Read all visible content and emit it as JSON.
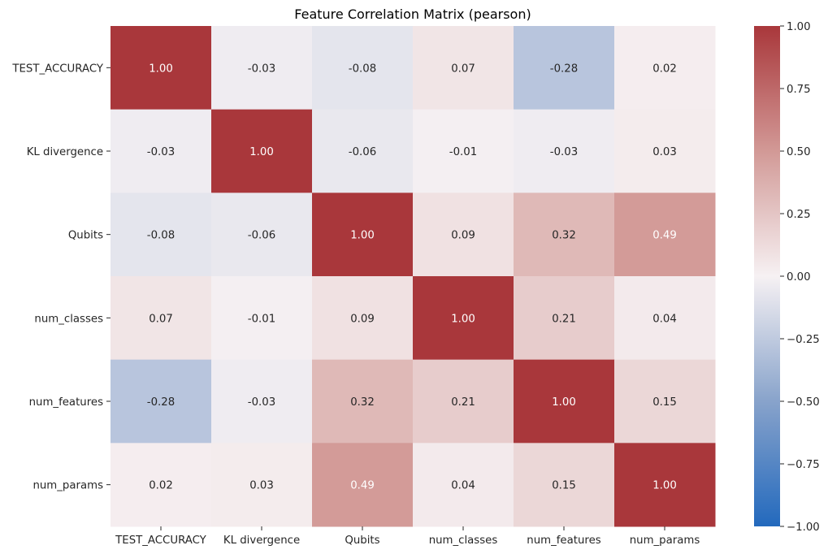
{
  "chart_data": {
    "type": "heatmap",
    "title": "Feature Correlation Matrix (pearson)",
    "x_labels": [
      "TEST_ACCURACY",
      "KL divergence",
      "Qubits",
      "num_classes",
      "num_features",
      "num_params"
    ],
    "y_labels": [
      "TEST_ACCURACY",
      "KL divergence",
      "Qubits",
      "num_classes",
      "num_features",
      "num_params"
    ],
    "values": [
      [
        1.0,
        -0.03,
        -0.08,
        0.07,
        -0.28,
        0.02
      ],
      [
        -0.03,
        1.0,
        -0.06,
        -0.01,
        -0.03,
        0.03
      ],
      [
        -0.08,
        -0.06,
        1.0,
        0.09,
        0.32,
        0.49
      ],
      [
        0.07,
        -0.01,
        0.09,
        1.0,
        0.21,
        0.04
      ],
      [
        -0.28,
        -0.03,
        0.32,
        0.21,
        1.0,
        0.15
      ],
      [
        0.02,
        0.03,
        0.49,
        0.04,
        0.15,
        1.0
      ]
    ],
    "value_format": "0.00",
    "colormap": "vlag",
    "color_range": [
      -1.0,
      1.0
    ],
    "colorbar": {
      "position": "right",
      "ticks": [
        1.0,
        0.75,
        0.5,
        0.25,
        0.0,
        -0.25,
        -0.5,
        -0.75,
        -1.0
      ],
      "tick_labels": [
        "1.00",
        "0.75",
        "0.50",
        "0.25",
        "0.00",
        "−0.25",
        "−0.50",
        "−0.75",
        "−1.00"
      ]
    },
    "colors": {
      "negative_end": "#2369bd",
      "neutral": "#f6f1f3",
      "positive_end": "#a9373b"
    }
  }
}
